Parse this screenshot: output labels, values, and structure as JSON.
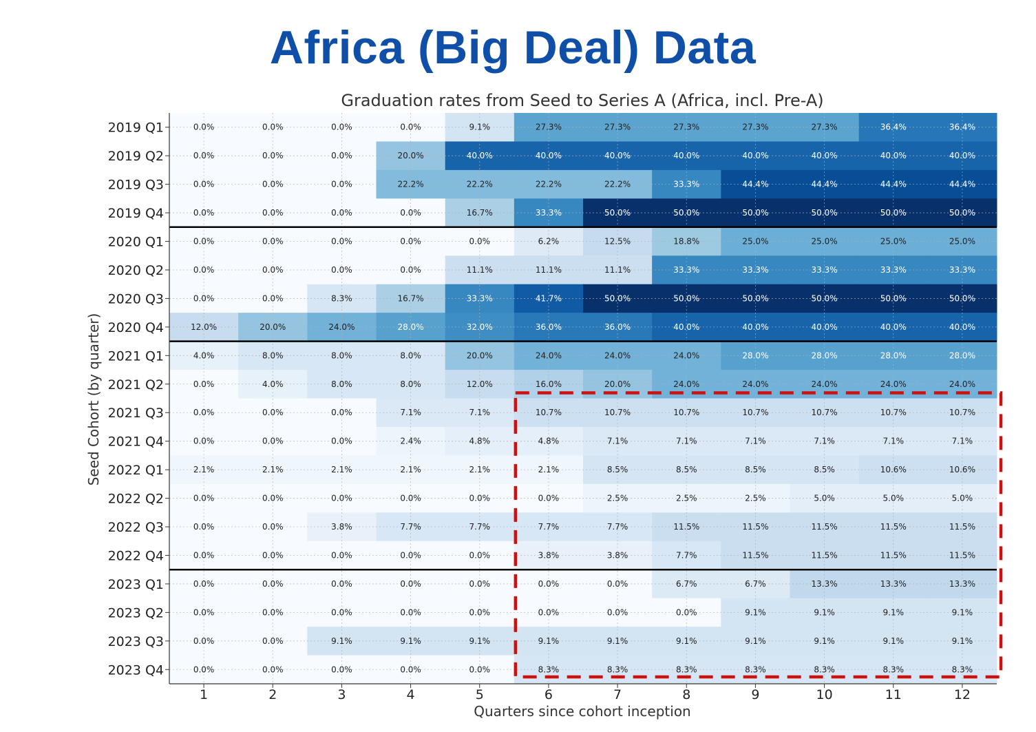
{
  "slide_title": "Africa (Big Deal) Data",
  "colors": {
    "title_blue": "#0f4fa8",
    "highlight_red": "#cc1111",
    "cmap": [
      "#f7fbff",
      "#deebf7",
      "#c6dbef",
      "#9ecae1",
      "#6baed6",
      "#4292c6",
      "#2171b5",
      "#08519c",
      "#08306b"
    ]
  },
  "chart_data": {
    "type": "heatmap",
    "title": "Graduation rates from Seed to Series A (Africa, incl. Pre-A)",
    "xlabel": "Quarters since cohort inception",
    "ylabel": "Seed Cohort (by quarter)",
    "x": [
      "1",
      "2",
      "3",
      "4",
      "5",
      "6",
      "7",
      "8",
      "9",
      "10",
      "11",
      "12"
    ],
    "y": [
      "2019 Q1",
      "2019 Q2",
      "2019 Q3",
      "2019 Q4",
      "2020 Q1",
      "2020 Q2",
      "2020 Q3",
      "2020 Q4",
      "2021 Q1",
      "2021 Q2",
      "2021 Q3",
      "2021 Q4",
      "2022 Q1",
      "2022 Q2",
      "2022 Q3",
      "2022 Q4",
      "2023 Q1",
      "2023 Q2",
      "2023 Q3",
      "2023 Q4"
    ],
    "value_range": [
      0,
      50
    ],
    "year_separators_after": [
      "2019 Q4",
      "2020 Q4",
      "2022 Q4"
    ],
    "labels": [
      [
        "0.0%",
        "0.0%",
        "0.0%",
        "0.0%",
        "9.1%",
        "27.3%",
        "27.3%",
        "27.3%",
        "27.3%",
        "27.3%",
        "36.4%",
        "36.4%"
      ],
      [
        "0.0%",
        "0.0%",
        "0.0%",
        "20.0%",
        "40.0%",
        "40.0%",
        "40.0%",
        "40.0%",
        "40.0%",
        "40.0%",
        "40.0%",
        "40.0%"
      ],
      [
        "0.0%",
        "0.0%",
        "0.0%",
        "22.2%",
        "22.2%",
        "22.2%",
        "22.2%",
        "33.3%",
        "44.4%",
        "44.4%",
        "44.4%",
        "44.4%"
      ],
      [
        "0.0%",
        "0.0%",
        "0.0%",
        "0.0%",
        "16.7%",
        "33.3%",
        "50.0%",
        "50.0%",
        "50.0%",
        "50.0%",
        "50.0%",
        "50.0%"
      ],
      [
        "0.0%",
        "0.0%",
        "0.0%",
        "0.0%",
        "0.0%",
        "6.2%",
        "12.5%",
        "18.8%",
        "25.0%",
        "25.0%",
        "25.0%",
        "25.0%"
      ],
      [
        "0.0%",
        "0.0%",
        "0.0%",
        "0.0%",
        "11.1%",
        "11.1%",
        "11.1%",
        "33.3%",
        "33.3%",
        "33.3%",
        "33.3%",
        "33.3%"
      ],
      [
        "0.0%",
        "0.0%",
        "8.3%",
        "16.7%",
        "33.3%",
        "41.7%",
        "50.0%",
        "50.0%",
        "50.0%",
        "50.0%",
        "50.0%",
        "50.0%"
      ],
      [
        "12.0%",
        "20.0%",
        "24.0%",
        "28.0%",
        "32.0%",
        "36.0%",
        "36.0%",
        "40.0%",
        "40.0%",
        "40.0%",
        "40.0%",
        "40.0%"
      ],
      [
        "4.0%",
        "8.0%",
        "8.0%",
        "8.0%",
        "20.0%",
        "24.0%",
        "24.0%",
        "24.0%",
        "28.0%",
        "28.0%",
        "28.0%",
        "28.0%"
      ],
      [
        "0.0%",
        "4.0%",
        "8.0%",
        "8.0%",
        "12.0%",
        "16.0%",
        "20.0%",
        "24.0%",
        "24.0%",
        "24.0%",
        "24.0%",
        "24.0%"
      ],
      [
        "0.0%",
        "0.0%",
        "0.0%",
        "7.1%",
        "7.1%",
        "10.7%",
        "10.7%",
        "10.7%",
        "10.7%",
        "10.7%",
        "10.7%",
        "10.7%"
      ],
      [
        "0.0%",
        "0.0%",
        "0.0%",
        "2.4%",
        "4.8%",
        "4.8%",
        "7.1%",
        "7.1%",
        "7.1%",
        "7.1%",
        "7.1%",
        "7.1%"
      ],
      [
        "2.1%",
        "2.1%",
        "2.1%",
        "2.1%",
        "2.1%",
        "2.1%",
        "8.5%",
        "8.5%",
        "8.5%",
        "8.5%",
        "10.6%",
        "10.6%"
      ],
      [
        "0.0%",
        "0.0%",
        "0.0%",
        "0.0%",
        "0.0%",
        "0.0%",
        "2.5%",
        "2.5%",
        "2.5%",
        "5.0%",
        "5.0%",
        "5.0%"
      ],
      [
        "0.0%",
        "0.0%",
        "3.8%",
        "7.7%",
        "7.7%",
        "7.7%",
        "7.7%",
        "11.5%",
        "11.5%",
        "11.5%",
        "11.5%",
        "11.5%"
      ],
      [
        "0.0%",
        "0.0%",
        "0.0%",
        "0.0%",
        "0.0%",
        "3.8%",
        "3.8%",
        "7.7%",
        "11.5%",
        "11.5%",
        "11.5%",
        "11.5%"
      ],
      [
        "0.0%",
        "0.0%",
        "0.0%",
        "0.0%",
        "0.0%",
        "0.0%",
        "0.0%",
        "6.7%",
        "6.7%",
        "13.3%",
        "13.3%",
        "13.3%"
      ],
      [
        "0.0%",
        "0.0%",
        "0.0%",
        "0.0%",
        "0.0%",
        "0.0%",
        "0.0%",
        "0.0%",
        "9.1%",
        "9.1%",
        "9.1%",
        "9.1%"
      ],
      [
        "0.0%",
        "0.0%",
        "9.1%",
        "9.1%",
        "9.1%",
        "9.1%",
        "9.1%",
        "9.1%",
        "9.1%",
        "9.1%",
        "9.1%",
        "9.1%"
      ],
      [
        "0.0%",
        "0.0%",
        "0.0%",
        "0.0%",
        "0.0%",
        "8.3%",
        "8.3%",
        "8.3%",
        "8.3%",
        "8.3%",
        "8.3%",
        "8.3%"
      ]
    ],
    "highlight_region": {
      "rows": [
        "2021 Q3",
        "2023 Q4"
      ],
      "columns": [
        "6",
        "12"
      ]
    }
  }
}
